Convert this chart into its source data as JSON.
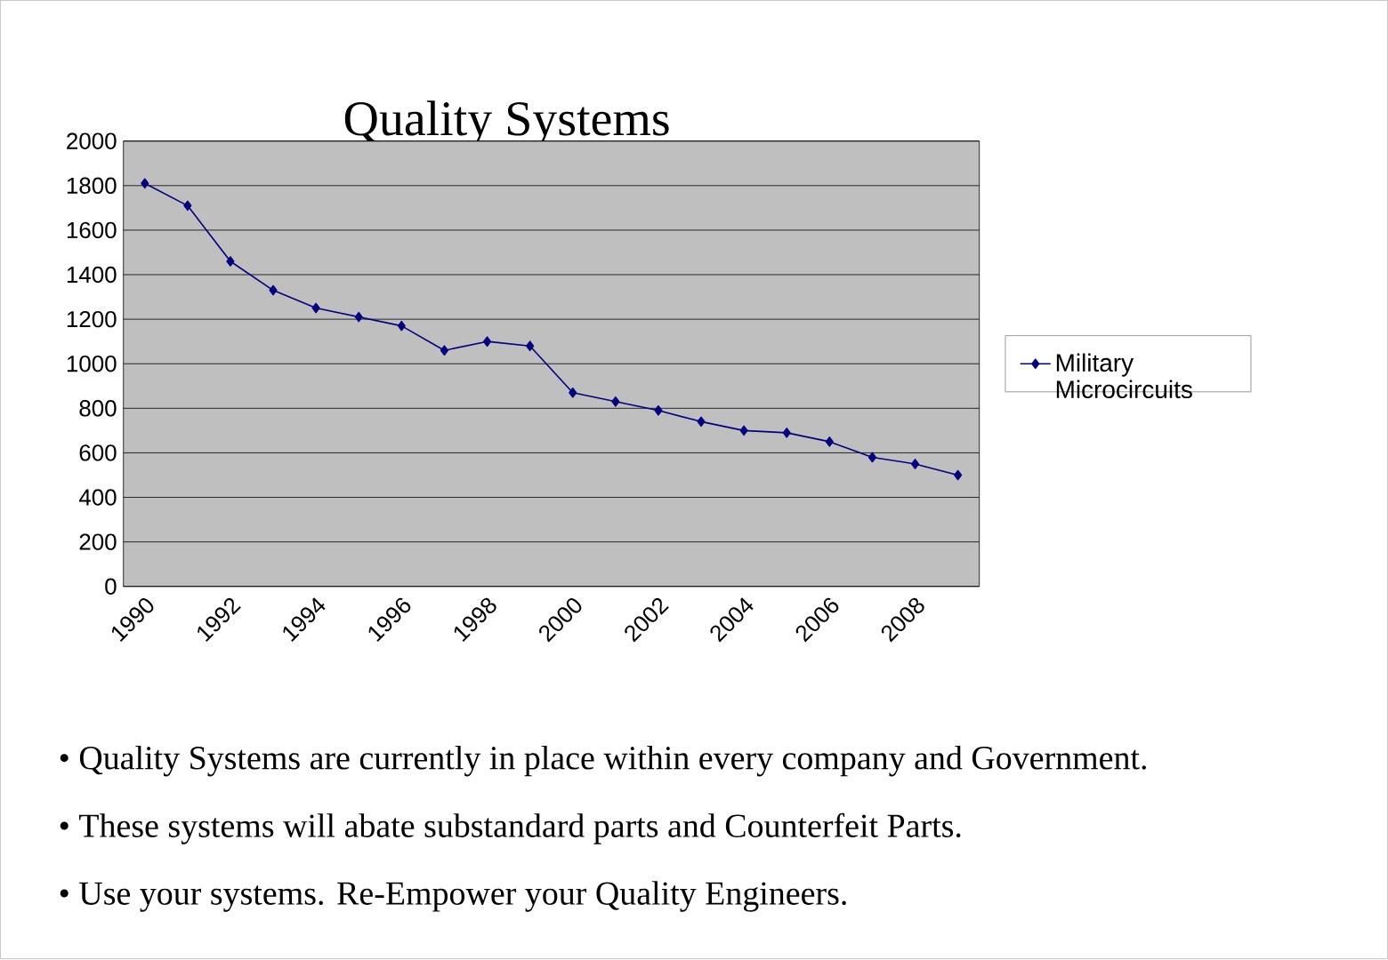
{
  "chart_data": {
    "type": "line",
    "title": "Quality Systems",
    "x": [
      1990,
      1991,
      1992,
      1993,
      1994,
      1995,
      1996,
      1997,
      1998,
      1999,
      2000,
      2001,
      2002,
      2003,
      2004,
      2005,
      2006,
      2007,
      2008,
      2009
    ],
    "series": [
      {
        "name": "Military Microcircuits",
        "color": "#000080",
        "values": [
          1810,
          1710,
          1460,
          1330,
          1250,
          1210,
          1170,
          1060,
          1100,
          1080,
          870,
          830,
          790,
          740,
          700,
          690,
          650,
          580,
          550,
          500
        ]
      }
    ],
    "xlim": [
      1989.5,
      2009.5
    ],
    "xticks": [
      1990,
      1992,
      1994,
      1996,
      1998,
      2000,
      2002,
      2004,
      2006,
      2008
    ],
    "ylim": [
      0,
      2000
    ],
    "yticks": [
      0,
      200,
      400,
      600,
      800,
      1000,
      1200,
      1400,
      1600,
      1800,
      2000
    ],
    "grid": "y",
    "legend": "right",
    "marker": "diamond",
    "line_style": "solid",
    "annotations": [
      "• Quality Systems are currently in place within every company and Government.",
      "• These systems will abate substandard parts and Counterfeit Parts.",
      "• Use your systems.  Re-Empower your Quality Engineers."
    ]
  }
}
